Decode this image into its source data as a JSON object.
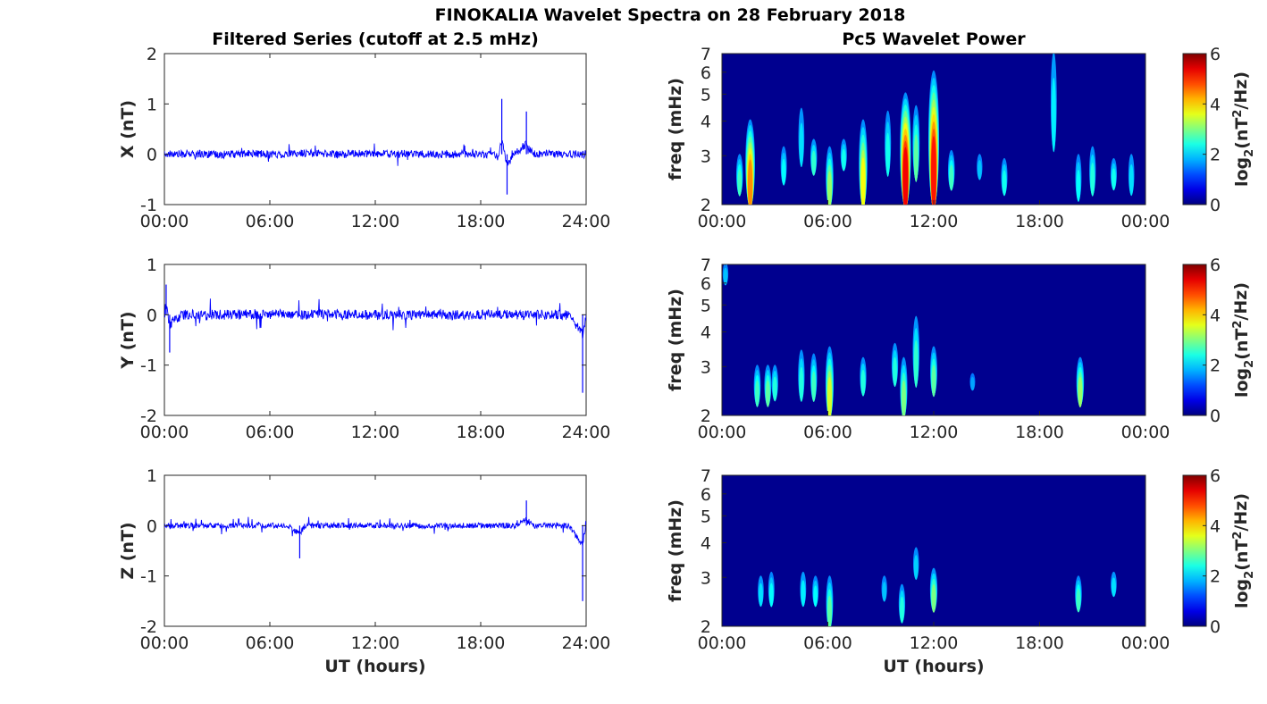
{
  "figure_title": "FINOKALIA Wavelet Spectra on 28 February 2018",
  "colors": {
    "series_line": "#0000ff",
    "spectrum_background": "#00008f"
  },
  "chart_data": [
    {
      "type": "line",
      "title": "Filtered Series (cutoff at 2.5 mHz)",
      "xlabel": "",
      "ylabel": "X (nT)",
      "xlim": [
        0,
        24
      ],
      "xticks": [
        "00:00",
        "06:00",
        "12:00",
        "18:00",
        "24:00"
      ],
      "ylim": [
        -1,
        2
      ],
      "yticks": [
        "-1",
        "0",
        "1",
        "2"
      ],
      "series": [
        {
          "x": [
            0,
            1,
            2,
            3,
            4,
            5,
            6,
            7,
            8,
            9,
            10,
            11,
            12,
            13,
            14,
            15,
            16,
            17,
            18,
            19,
            19.2,
            19.5,
            20,
            20.6,
            21,
            22,
            23,
            24
          ],
          "y": [
            0.05,
            0.0,
            0.05,
            -0.05,
            0.0,
            0.05,
            0.0,
            0.0,
            0.1,
            0.05,
            0.0,
            0.05,
            0.05,
            0.0,
            0.05,
            0.0,
            0.0,
            0.0,
            0.0,
            0.0,
            1.1,
            -0.8,
            0.1,
            0.85,
            0.0,
            0.05,
            0.0,
            0.0
          ]
        }
      ]
    },
    {
      "type": "line",
      "title": "",
      "xlabel": "",
      "ylabel": "Y (nT)",
      "xlim": [
        0,
        24
      ],
      "xticks": [
        "00:00",
        "06:00",
        "12:00",
        "18:00",
        "24:00"
      ],
      "ylim": [
        -2,
        1
      ],
      "yticks": [
        "-2",
        "-1",
        "0",
        "1"
      ],
      "series": [
        {
          "x": [
            0,
            0.1,
            0.3,
            1,
            2,
            3,
            4,
            5,
            6,
            7,
            8,
            9,
            10,
            11,
            12,
            13,
            14,
            15,
            16,
            17,
            18,
            19,
            20,
            21,
            22,
            23,
            23.8,
            24
          ],
          "y": [
            0.0,
            0.6,
            -0.75,
            0.0,
            0.05,
            0.0,
            0.0,
            0.05,
            0.05,
            0.1,
            0.0,
            0.05,
            0.05,
            0.0,
            0.0,
            0.05,
            0.0,
            0.0,
            0.0,
            0.0,
            0.0,
            0.0,
            0.0,
            0.0,
            0.0,
            0.0,
            -1.55,
            0.0
          ]
        }
      ]
    },
    {
      "type": "line",
      "title": "",
      "xlabel": "UT (hours)",
      "ylabel": "Z (nT)",
      "xlim": [
        0,
        24
      ],
      "xticks": [
        "00:00",
        "06:00",
        "12:00",
        "18:00",
        "24:00"
      ],
      "ylim": [
        -2,
        1
      ],
      "yticks": [
        "-2",
        "-1",
        "0",
        "1"
      ],
      "series": [
        {
          "x": [
            0,
            1,
            2,
            3,
            4,
            5,
            6,
            7,
            7.7,
            8,
            9,
            10,
            11,
            12,
            13,
            14,
            15,
            16,
            17,
            18,
            19,
            20,
            20.6,
            21,
            22,
            23,
            23.8,
            24
          ],
          "y": [
            0.0,
            0.0,
            0.0,
            0.0,
            0.0,
            0.0,
            0.0,
            0.0,
            -0.65,
            0.0,
            0.0,
            0.0,
            0.0,
            0.0,
            0.0,
            0.0,
            0.0,
            0.0,
            0.0,
            0.0,
            0.0,
            0.0,
            0.5,
            0.0,
            0.0,
            0.0,
            -1.5,
            0.0
          ]
        }
      ]
    },
    {
      "type": "heatmap",
      "title": "Pc5 Wavelet Power",
      "xlabel": "",
      "ylabel": "freq (mHz)",
      "scale_y": "log",
      "xlim": [
        0,
        24
      ],
      "xticks": [
        "00:00",
        "06:00",
        "12:00",
        "18:00",
        "00:00"
      ],
      "ylim": [
        2,
        7
      ],
      "yticks": [
        "2",
        "3",
        "4",
        "5",
        "6",
        "7"
      ],
      "colorbar": {
        "label": "log2(nT2/Hz)",
        "range": [
          0,
          6
        ],
        "ticks": [
          "0",
          "2",
          "4",
          "6"
        ],
        "colormap": "jet"
      },
      "features": [
        {
          "t": 1.0,
          "fmin": 2.2,
          "fmax": 3.0,
          "power": 1.6
        },
        {
          "t": 1.6,
          "fmin": 2.0,
          "fmax": 4.0,
          "power": 3.6
        },
        {
          "t": 3.5,
          "fmin": 2.4,
          "fmax": 3.2,
          "power": 1.2
        },
        {
          "t": 4.5,
          "fmin": 2.8,
          "fmax": 4.4,
          "power": 1.0
        },
        {
          "t": 5.2,
          "fmin": 2.6,
          "fmax": 3.4,
          "power": 1.5
        },
        {
          "t": 6.1,
          "fmin": 2.0,
          "fmax": 3.2,
          "power": 2.2
        },
        {
          "t": 6.9,
          "fmin": 2.7,
          "fmax": 3.4,
          "power": 1.3
        },
        {
          "t": 8.0,
          "fmin": 2.0,
          "fmax": 4.0,
          "power": 2.8
        },
        {
          "t": 9.4,
          "fmin": 2.6,
          "fmax": 4.3,
          "power": 1.3
        },
        {
          "t": 10.4,
          "fmin": 2.0,
          "fmax": 5.0,
          "power": 4.6
        },
        {
          "t": 11.0,
          "fmin": 2.5,
          "fmax": 4.5,
          "power": 1.8
        },
        {
          "t": 12.0,
          "fmin": 2.0,
          "fmax": 6.0,
          "power": 4.4
        },
        {
          "t": 13.0,
          "fmin": 2.3,
          "fmax": 3.1,
          "power": 1.6
        },
        {
          "t": 14.6,
          "fmin": 2.5,
          "fmax": 3.0,
          "power": 0.8
        },
        {
          "t": 16.0,
          "fmin": 2.2,
          "fmax": 2.9,
          "power": 1.3
        },
        {
          "t": 18.8,
          "fmin": 3.2,
          "fmax": 7.0,
          "power": 1.1
        },
        {
          "t": 20.2,
          "fmin": 2.1,
          "fmax": 3.0,
          "power": 1.2
        },
        {
          "t": 21.0,
          "fmin": 2.2,
          "fmax": 3.2,
          "power": 1.4
        },
        {
          "t": 22.2,
          "fmin": 2.3,
          "fmax": 2.9,
          "power": 1.3
        },
        {
          "t": 23.2,
          "fmin": 2.2,
          "fmax": 3.0,
          "power": 1.0
        }
      ]
    },
    {
      "type": "heatmap",
      "title": "",
      "xlabel": "",
      "ylabel": "freq (mHz)",
      "scale_y": "log",
      "xlim": [
        0,
        24
      ],
      "xticks": [
        "00:00",
        "06:00",
        "12:00",
        "18:00",
        "00:00"
      ],
      "ylim": [
        2,
        7
      ],
      "yticks": [
        "2",
        "3",
        "4",
        "5",
        "6",
        "7"
      ],
      "colorbar": {
        "label": "log2(nT2/Hz)",
        "range": [
          0,
          6
        ],
        "ticks": [
          "0",
          "2",
          "4",
          "6"
        ],
        "colormap": "jet"
      },
      "features": [
        {
          "t": 0.2,
          "fmin": 6.0,
          "fmax": 7.0,
          "power": 0.8
        },
        {
          "t": 2.0,
          "fmin": 2.2,
          "fmax": 3.0,
          "power": 1.6
        },
        {
          "t": 2.6,
          "fmin": 2.2,
          "fmax": 3.0,
          "power": 1.8
        },
        {
          "t": 3.0,
          "fmin": 2.3,
          "fmax": 3.0,
          "power": 1.4
        },
        {
          "t": 4.5,
          "fmin": 2.3,
          "fmax": 3.4,
          "power": 1.4
        },
        {
          "t": 5.2,
          "fmin": 2.3,
          "fmax": 3.3,
          "power": 1.6
        },
        {
          "t": 6.1,
          "fmin": 2.0,
          "fmax": 3.5,
          "power": 2.6
        },
        {
          "t": 8.0,
          "fmin": 2.4,
          "fmax": 3.2,
          "power": 1.4
        },
        {
          "t": 9.8,
          "fmin": 2.6,
          "fmax": 3.6,
          "power": 1.4
        },
        {
          "t": 10.3,
          "fmin": 2.0,
          "fmax": 3.2,
          "power": 2.0
        },
        {
          "t": 11.0,
          "fmin": 2.6,
          "fmax": 4.5,
          "power": 1.5
        },
        {
          "t": 12.0,
          "fmin": 2.4,
          "fmax": 3.5,
          "power": 1.8
        },
        {
          "t": 14.2,
          "fmin": 2.5,
          "fmax": 2.8,
          "power": 0.6
        },
        {
          "t": 20.3,
          "fmin": 2.2,
          "fmax": 3.2,
          "power": 2.2
        }
      ]
    },
    {
      "type": "heatmap",
      "title": "",
      "xlabel": "UT (hours)",
      "ylabel": "freq (mHz)",
      "scale_y": "log",
      "xlim": [
        0,
        24
      ],
      "xticks": [
        "00:00",
        "06:00",
        "12:00",
        "18:00",
        "00:00"
      ],
      "ylim": [
        2,
        7
      ],
      "yticks": [
        "2",
        "3",
        "4",
        "5",
        "6",
        "7"
      ],
      "colorbar": {
        "label": "log2(nT2/Hz)",
        "range": [
          0,
          6
        ],
        "ticks": [
          "0",
          "2",
          "4",
          "6"
        ],
        "colormap": "jet"
      },
      "features": [
        {
          "t": 2.2,
          "fmin": 2.4,
          "fmax": 3.0,
          "power": 1.0
        },
        {
          "t": 2.8,
          "fmin": 2.4,
          "fmax": 3.1,
          "power": 1.2
        },
        {
          "t": 4.6,
          "fmin": 2.4,
          "fmax": 3.1,
          "power": 1.1
        },
        {
          "t": 5.3,
          "fmin": 2.4,
          "fmax": 3.0,
          "power": 1.2
        },
        {
          "t": 6.1,
          "fmin": 2.0,
          "fmax": 3.0,
          "power": 1.8
        },
        {
          "t": 9.2,
          "fmin": 2.5,
          "fmax": 3.0,
          "power": 0.8
        },
        {
          "t": 10.2,
          "fmin": 2.1,
          "fmax": 2.8,
          "power": 1.4
        },
        {
          "t": 11.0,
          "fmin": 3.0,
          "fmax": 3.8,
          "power": 0.9
        },
        {
          "t": 12.0,
          "fmin": 2.3,
          "fmax": 3.2,
          "power": 2.0
        },
        {
          "t": 20.2,
          "fmin": 2.3,
          "fmax": 3.0,
          "power": 1.6
        },
        {
          "t": 22.2,
          "fmin": 2.6,
          "fmax": 3.1,
          "power": 1.0
        }
      ]
    }
  ]
}
